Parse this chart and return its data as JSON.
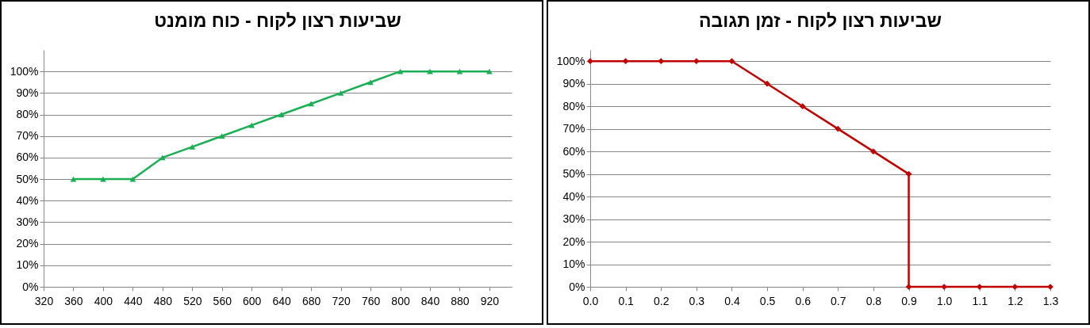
{
  "chart_data": [
    {
      "type": "line",
      "title": "שביעות רצון לקוח - כוח מומנט",
      "x": [
        360,
        400,
        440,
        480,
        520,
        560,
        600,
        640,
        680,
        720,
        760,
        800,
        840,
        880,
        920
      ],
      "series": [
        {
          "color": "#1aaf54",
          "values": [
            50,
            50,
            50,
            60,
            65,
            70,
            75,
            80,
            85,
            90,
            95,
            100,
            100,
            100,
            100
          ]
        }
      ],
      "xlim": [
        320,
        950
      ],
      "xticks": [
        320,
        360,
        400,
        440,
        480,
        520,
        560,
        600,
        640,
        680,
        720,
        760,
        800,
        840,
        880,
        920
      ],
      "ylim": [
        0,
        110
      ],
      "yticks": [
        {
          "value": 0,
          "label": "0%"
        },
        {
          "value": 10,
          "label": "10%"
        },
        {
          "value": 20,
          "label": "20%"
        },
        {
          "value": 30,
          "label": "30%"
        },
        {
          "value": 40,
          "label": "40%"
        },
        {
          "value": 50,
          "label": "50%"
        },
        {
          "value": 60,
          "label": "60%"
        },
        {
          "value": 70,
          "label": "70%"
        },
        {
          "value": 80,
          "label": "80%"
        },
        {
          "value": 90,
          "label": "90%"
        },
        {
          "value": 100,
          "label": "100%"
        }
      ],
      "grid": "y",
      "marker": "triangle",
      "line_style": "solid"
    },
    {
      "type": "line",
      "title": "שביעות רצון לקוח - זמן תגובה",
      "x": [
        0,
        0.1,
        0.2,
        0.3,
        0.4,
        0.5,
        0.6,
        0.7,
        0.8,
        0.9,
        0.9,
        1.0,
        1.1,
        1.2,
        1.3
      ],
      "series": [
        {
          "color": "#c00000",
          "values": [
            100,
            100,
            100,
            100,
            100,
            90,
            80,
            70,
            60,
            50,
            0,
            0,
            0,
            0,
            0
          ]
        }
      ],
      "xlim": [
        0,
        1.3
      ],
      "xticks": [
        {
          "value": 0,
          "label": "0.0"
        },
        {
          "value": 0.1,
          "label": "0.1"
        },
        {
          "value": 0.2,
          "label": "0.2"
        },
        {
          "value": 0.3,
          "label": "0.3"
        },
        {
          "value": 0.4,
          "label": "0.4"
        },
        {
          "value": 0.5,
          "label": "0.5"
        },
        {
          "value": 0.6,
          "label": "0.6"
        },
        {
          "value": 0.7,
          "label": "0.7"
        },
        {
          "value": 0.8,
          "label": "0.8"
        },
        {
          "value": 0.9,
          "label": "0.9"
        },
        {
          "value": 1.0,
          "label": "1.0"
        },
        {
          "value": 1.1,
          "label": "1.1"
        },
        {
          "value": 1.2,
          "label": "1.2"
        },
        {
          "value": 1.3,
          "label": "1.3"
        }
      ],
      "ylim": [
        0,
        105
      ],
      "yticks": [
        {
          "value": 0,
          "label": "0%"
        },
        {
          "value": 10,
          "label": "10%"
        },
        {
          "value": 20,
          "label": "20%"
        },
        {
          "value": 30,
          "label": "30%"
        },
        {
          "value": 40,
          "label": "40%"
        },
        {
          "value": 50,
          "label": "50%"
        },
        {
          "value": 60,
          "label": "60%"
        },
        {
          "value": 70,
          "label": "70%"
        },
        {
          "value": 80,
          "label": "80%"
        },
        {
          "value": 90,
          "label": "90%"
        },
        {
          "value": 100,
          "label": "100%"
        }
      ],
      "grid": "y",
      "marker": "diamond",
      "line_style": "solid"
    }
  ]
}
